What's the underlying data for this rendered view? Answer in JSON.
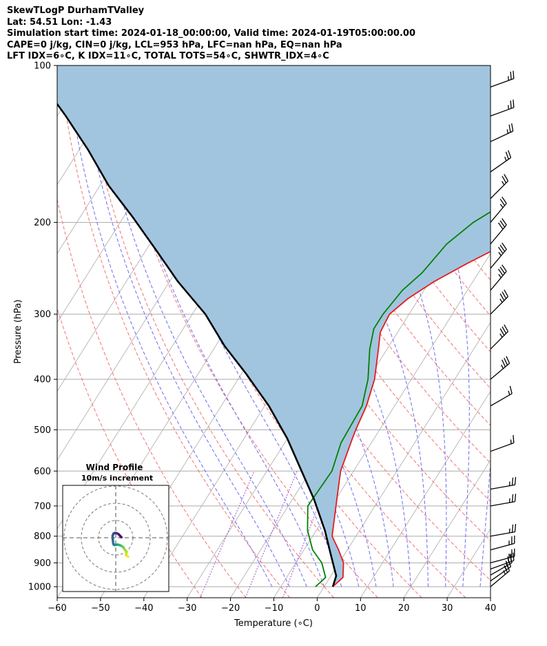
{
  "header": {
    "line1": "SkewTLogP DurhamTValley",
    "line2": "Lat: 54.51   Lon: -1.43",
    "line3": "Simulation start time: 2024-01-18_00:00:00, Valid time: 2024-01-19T05:00:00.00",
    "line4": "CAPE=0 j/kg, CIN=0 j/kg, LCL=953 hPa, LFC=nan hPa, EQ=nan hPa",
    "line5": "LFT IDX=6∘C, K IDX=11∘C, TOTAL TOTS=54∘C, SHWTR_IDX=4∘C"
  },
  "colors": {
    "temperature": "#e41a1c",
    "dewpoint": "#008000",
    "parcel": "#000000",
    "shade": "#a2c5df",
    "dry_adiabat": "#f47272",
    "moist_adiabat": "#6b6bf2",
    "mixing_ratio": "#a04fcf",
    "isotherm": "#aaaaaa"
  },
  "chart_data": [
    {
      "type": "line",
      "subtype": "skew-T log-P",
      "xlabel": "Temperature (∘C)",
      "ylabel": "Pressure (hPa)",
      "xlim": [
        -60,
        40
      ],
      "ylim": [
        1050,
        100
      ],
      "yscale": "log",
      "grid": true,
      "x_ticks": [
        -60,
        -50,
        -40,
        -30,
        -20,
        -10,
        0,
        10,
        20,
        30,
        40
      ],
      "y_ticks": [
        1000,
        900,
        800,
        700,
        600,
        500,
        400,
        300,
        200,
        100
      ],
      "series": [
        {
          "name": "Temperature",
          "points": [
            [
              2.0,
              1000
            ],
            [
              3.0,
              960
            ],
            [
              1.0,
              900
            ],
            [
              -2.0,
              850
            ],
            [
              -5.5,
              800
            ],
            [
              -9.0,
              700
            ],
            [
              -13.0,
              600
            ],
            [
              -15.0,
              520
            ],
            [
              -15.5,
              500
            ],
            [
              -16.5,
              450
            ],
            [
              -18.5,
              400
            ],
            [
              -22.0,
              350
            ],
            [
              -24.0,
              325
            ],
            [
              -24.5,
              300
            ],
            [
              -22.5,
              280
            ],
            [
              -19.0,
              260
            ],
            [
              -14.0,
              240
            ],
            [
              -8.0,
              220
            ],
            [
              -1.0,
              200
            ],
            [
              4.0,
              185
            ],
            [
              9.0,
              160
            ],
            [
              13.0,
              140
            ],
            [
              17.0,
              125
            ],
            [
              20.0,
              113
            ],
            [
              21.0,
              100
            ]
          ]
        },
        {
          "name": "Dewpoint",
          "points": [
            [
              -2.0,
              1000
            ],
            [
              -1.0,
              960
            ],
            [
              -4.0,
              900
            ],
            [
              -8.0,
              850
            ],
            [
              -12.0,
              780
            ],
            [
              -15.5,
              700
            ],
            [
              -15.0,
              600
            ],
            [
              -17.0,
              530
            ],
            [
              -17.5,
              450
            ],
            [
              -20.0,
              400
            ],
            [
              -24.0,
              350
            ],
            [
              -26.0,
              320
            ],
            [
              -26.0,
              300
            ],
            [
              -25.0,
              270
            ],
            [
              -23.0,
              250
            ],
            [
              -21.5,
              220
            ],
            [
              -18.5,
              200
            ],
            [
              -13.0,
              180
            ],
            [
              -4.0,
              160
            ],
            [
              0.0,
              145
            ],
            [
              3.0,
              125
            ],
            [
              6.0,
              113
            ],
            [
              9.0,
              100
            ]
          ]
        },
        {
          "name": "Parcel",
          "points": [
            [
              2.0,
              1000
            ],
            [
              1.2,
              953
            ],
            [
              -3.0,
              870
            ],
            [
              -8.0,
              780
            ],
            [
              -15.0,
              680
            ],
            [
              -22.0,
              600
            ],
            [
              -30.0,
              520
            ],
            [
              -39.0,
              450
            ],
            [
              -49.0,
              390
            ],
            [
              -58.0,
              345
            ],
            [
              -67.0,
              300
            ],
            [
              -78.0,
              260
            ],
            [
              -88.0,
              225
            ],
            [
              -98.0,
              195
            ],
            [
              -108.0,
              170
            ],
            [
              -118.0,
              145
            ],
            [
              -128.0,
              125
            ],
            [
              -137.0,
              110
            ],
            [
              -143.0,
              100
            ]
          ]
        }
      ]
    },
    {
      "type": "line",
      "subtype": "hodograph",
      "title": "Wind Profile",
      "subtitle": "10m/s increment",
      "x": [
        7.2,
        6.0,
        6.3,
        5.2,
        4.4,
        3.4,
        2.3,
        1.2,
        0.2,
        -0.8,
        -1.3,
        -1.5,
        -1.7,
        -1.8,
        -1.3,
        -0.4,
        0.7,
        1.7,
        2.6,
        3.3
      ],
      "y": [
        -11.0,
        -10.0,
        -8.2,
        -6.8,
        -5.5,
        -4.8,
        -4.3,
        -4.0,
        -4.0,
        -4.2,
        -3.8,
        -3.0,
        -1.0,
        1.2,
        2.4,
        2.8,
        2.6,
        2.0,
        1.0,
        0.3
      ]
    }
  ],
  "wind_barbs": [
    {
      "p": 1000,
      "speed": 25,
      "dir": 50
    },
    {
      "p": 975,
      "speed": 25,
      "dir": 55
    },
    {
      "p": 950,
      "speed": 25,
      "dir": 60
    },
    {
      "p": 925,
      "speed": 25,
      "dir": 70
    },
    {
      "p": 900,
      "speed": 25,
      "dir": 75
    },
    {
      "p": 850,
      "speed": 25,
      "dir": 75
    },
    {
      "p": 800,
      "speed": 25,
      "dir": 80
    },
    {
      "p": 700,
      "speed": 25,
      "dir": 80
    },
    {
      "p": 650,
      "speed": 25,
      "dir": 80
    },
    {
      "p": 550,
      "speed": 15,
      "dir": 70
    },
    {
      "p": 450,
      "speed": 15,
      "dir": 60
    },
    {
      "p": 400,
      "speed": 35,
      "dir": 50
    },
    {
      "p": 350,
      "speed": 35,
      "dir": 45
    },
    {
      "p": 300,
      "speed": 35,
      "dir": 45
    },
    {
      "p": 270,
      "speed": 35,
      "dir": 40
    },
    {
      "p": 245,
      "speed": 35,
      "dir": 40
    },
    {
      "p": 220,
      "speed": 30,
      "dir": 40
    },
    {
      "p": 200,
      "speed": 25,
      "dir": 40
    },
    {
      "p": 180,
      "speed": 25,
      "dir": 45
    },
    {
      "p": 160,
      "speed": 25,
      "dir": 55
    },
    {
      "p": 140,
      "speed": 25,
      "dir": 65
    },
    {
      "p": 125,
      "speed": 25,
      "dir": 70
    },
    {
      "p": 110,
      "speed": 25,
      "dir": 70
    }
  ]
}
